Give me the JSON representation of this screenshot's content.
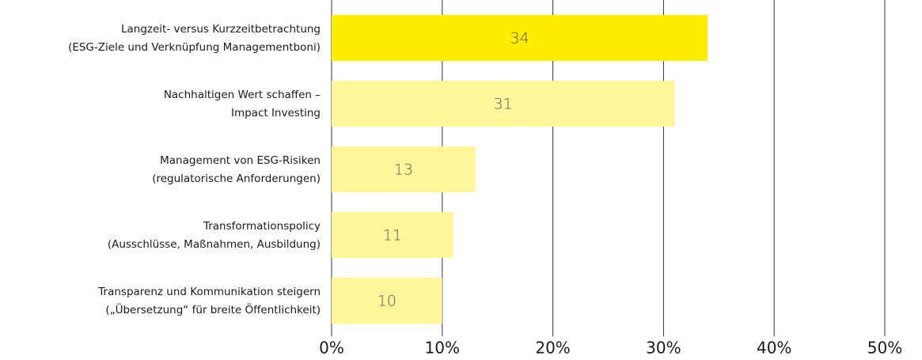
{
  "chart_data": {
    "type": "barh",
    "categories": [
      [
        "Langzeit- versus Kurzzeitbetrachtung",
        "(ESG-Ziele und Verknüpfung Managementboni)"
      ],
      [
        "Nachhaltigen Wert schaffen –",
        "Impact Investing"
      ],
      [
        "Management von ESG-Risiken",
        "(regulatorische Anforderungen)"
      ],
      [
        "Transformationspolicy",
        "(Ausschlüsse, Maßnahmen, Ausbildung)"
      ],
      [
        "Transparenz und Kommunikation steigern",
        "(„Übersetzung“ für breite Öffentlichkeit)"
      ]
    ],
    "values": [
      34,
      31,
      13,
      11,
      10
    ],
    "colors": [
      "#ffed00",
      "#fff59a",
      "#fff59a",
      "#fff59a",
      "#fff59a"
    ],
    "xlim": [
      0,
      50
    ],
    "xticks": [
      {
        "value": 0,
        "label": "0%"
      },
      {
        "value": 10,
        "label": "10%"
      },
      {
        "value": 20,
        "label": "20%"
      },
      {
        "value": 30,
        "label": "30%"
      },
      {
        "value": 40,
        "label": "40%"
      },
      {
        "value": 50,
        "label": "50%"
      }
    ],
    "grid": true
  }
}
